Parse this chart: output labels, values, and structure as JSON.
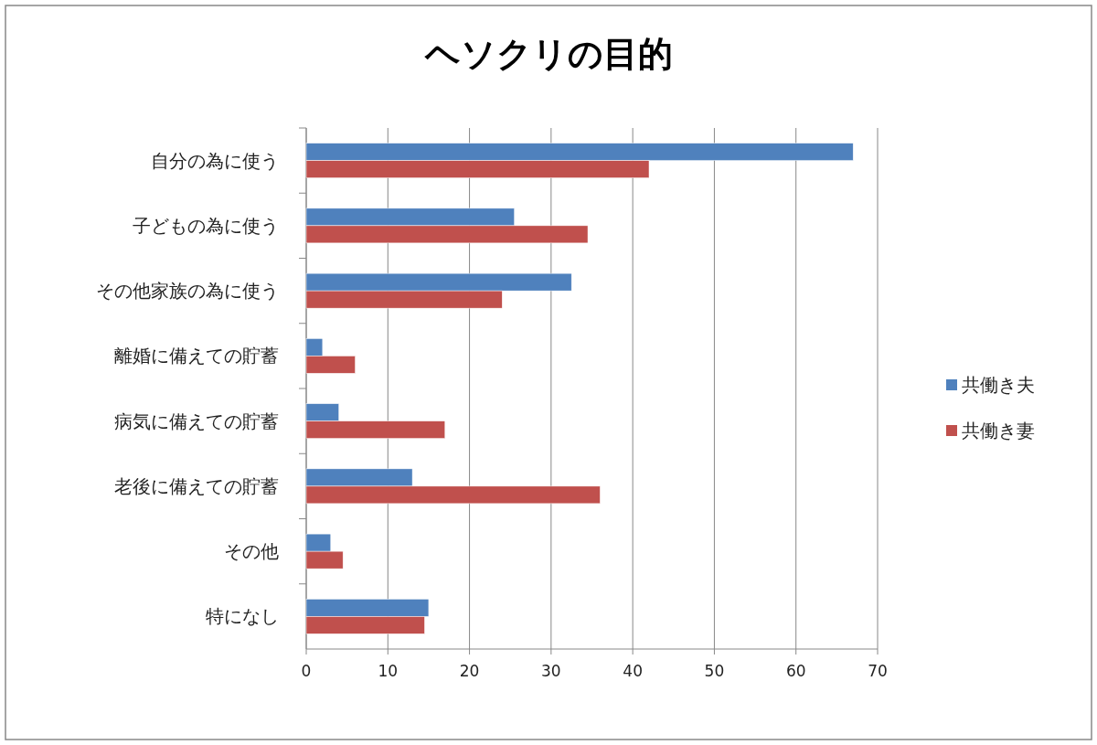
{
  "chart_data": {
    "type": "bar",
    "orientation": "horizontal",
    "title": "ヘソクリの目的",
    "categories": [
      "自分の為に使う",
      "子どもの為に使う",
      "その他家族の為に使う",
      "離婚に備えての貯蓄",
      "病気に備えての貯蓄",
      "老後に備えての貯蓄",
      "その他",
      "特になし"
    ],
    "series": [
      {
        "name": "共働き夫",
        "color": "#4f81bd",
        "values": [
          67,
          25.5,
          32.5,
          2,
          4,
          13,
          3,
          15
        ]
      },
      {
        "name": "共働き妻",
        "color": "#c0504d",
        "values": [
          42,
          34.5,
          24,
          6,
          17,
          36,
          4.5,
          14.5
        ]
      }
    ],
    "xlim": [
      0,
      70
    ],
    "xticks": [
      0,
      10,
      20,
      30,
      40,
      50,
      60,
      70
    ],
    "grid": "x",
    "legend": "right"
  }
}
